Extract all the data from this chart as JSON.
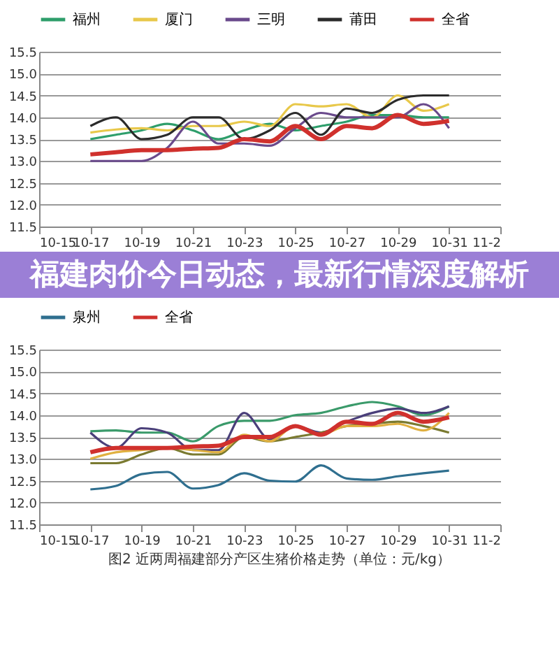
{
  "chart_data": [
    {
      "type": "line",
      "x": [
        "--10-17",
        "--10-18",
        "--10-19",
        "--10-20",
        "--10-21",
        "--10-22",
        "--10-23",
        "--10-24",
        "--10-25",
        "--10-26",
        "--10-27",
        "--10-28",
        "--10-29",
        "--10-30",
        "--10-31"
      ],
      "xlim": [
        "--10-15",
        "--11-02"
      ],
      "xticks": [
        {
          "value": "--10-15",
          "label": "10-15"
        },
        {
          "value": "--10-17",
          "label": "10-17"
        },
        {
          "value": "--10-19",
          "label": "10-19"
        },
        {
          "value": "--10-21",
          "label": "10-21"
        },
        {
          "value": "--10-23",
          "label": "10-23"
        },
        {
          "value": "--10-25",
          "label": "10-25"
        },
        {
          "value": "--10-27",
          "label": "10-27"
        },
        {
          "value": "--10-29",
          "label": "10-29"
        },
        {
          "value": "--10-31",
          "label": "10-31"
        },
        {
          "value": "--11-02",
          "label": "11-2"
        }
      ],
      "ylim": [
        11.5,
        15.5
      ],
      "yticks": [
        11.5,
        {
          "value": 12,
          "label": "12.0"
        },
        12.5,
        {
          "value": 13,
          "label": "13.0"
        },
        13.5,
        {
          "value": 14,
          "label": "14.0"
        },
        14.5,
        {
          "value": 15,
          "label": "15.0"
        },
        15.5
      ],
      "grid": "y",
      "legend": "top",
      "series": [
        {
          "name": "福州",
          "color": "#2e9e6b",
          "values": [
            13.5,
            13.6,
            13.7,
            13.85,
            13.7,
            13.5,
            13.7,
            13.85,
            13.7,
            13.8,
            13.9,
            14.05,
            14.05,
            14.0,
            14.0
          ]
        },
        {
          "name": "厦门",
          "color": "#e8c84a",
          "values": [
            13.65,
            13.72,
            13.75,
            13.7,
            13.8,
            13.8,
            13.9,
            13.8,
            14.3,
            14.25,
            14.3,
            14.0,
            14.5,
            14.15,
            14.3
          ]
        },
        {
          "name": "三明",
          "color": "#6a4a8c",
          "values": [
            13.0,
            13.0,
            13.0,
            13.3,
            13.9,
            13.4,
            13.4,
            13.35,
            13.75,
            14.1,
            14.0,
            14.0,
            14.0,
            14.3,
            13.75
          ]
        },
        {
          "name": "莆田",
          "color": "#2b2b2b",
          "values": [
            13.8,
            14.0,
            13.5,
            13.6,
            14.0,
            14.0,
            13.5,
            13.7,
            14.1,
            13.6,
            14.2,
            14.1,
            14.4,
            14.5,
            14.5
          ]
        },
        {
          "name": "全省",
          "color": "#d0312d",
          "values": [
            13.15,
            13.2,
            13.25,
            13.25,
            13.28,
            13.3,
            13.5,
            13.45,
            13.8,
            13.5,
            13.8,
            13.75,
            14.05,
            13.85,
            13.92
          ]
        }
      ]
    },
    {
      "type": "line",
      "title": "福建肉价今日动态，最新行情深度解析",
      "annotations": [
        "图2  近两周福建部分产区生猪价格走势（单位：元/kg）"
      ],
      "x": [
        "--10-17",
        "--10-18",
        "--10-19",
        "--10-20",
        "--10-21",
        "--10-22",
        "--10-23",
        "--10-24",
        "--10-25",
        "--10-26",
        "--10-27",
        "--10-28",
        "--10-29",
        "--10-30",
        "--10-31"
      ],
      "xlim": [
        "--10-15",
        "--11-02"
      ],
      "xticks": [
        {
          "value": "--10-15",
          "label": "10-15"
        },
        {
          "value": "--10-17",
          "label": "10-17"
        },
        {
          "value": "--10-19",
          "label": "10-19"
        },
        {
          "value": "--10-21",
          "label": "10-21"
        },
        {
          "value": "--10-23",
          "label": "10-23"
        },
        {
          "value": "--10-25",
          "label": "10-25"
        },
        {
          "value": "--10-27",
          "label": "10-27"
        },
        {
          "value": "--10-29",
          "label": "10-29"
        },
        {
          "value": "--10-31",
          "label": "10-31"
        },
        {
          "value": "--11-02",
          "label": "11-2"
        }
      ],
      "ylim": [
        11.5,
        15.5
      ],
      "yticks": [
        11.5,
        {
          "value": 12,
          "label": "12.0"
        },
        12.5,
        {
          "value": 13,
          "label": "13.0"
        },
        13.5,
        {
          "value": 14,
          "label": "14.0"
        },
        14.5,
        {
          "value": 15,
          "label": "15.0"
        },
        15.5
      ],
      "grid": "y",
      "legend": "top",
      "series": [
        {
          "name": "泉州",
          "color": "#2f6f8f",
          "values": [
            12.3,
            12.38,
            12.65,
            12.7,
            12.32,
            12.4,
            12.67,
            12.5,
            12.48,
            12.85,
            12.55,
            12.52,
            12.6,
            12.67,
            12.73
          ]
        },
        {
          "color": "#3a9a6a",
          "values": [
            13.63,
            13.65,
            13.6,
            13.6,
            13.4,
            13.75,
            13.87,
            13.87,
            14.0,
            14.05,
            14.2,
            14.3,
            14.2,
            14.0,
            14.2
          ]
        },
        {
          "color": "#4a3f7a",
          "values": [
            13.6,
            13.25,
            13.7,
            13.6,
            13.2,
            13.2,
            14.05,
            13.45,
            13.75,
            13.6,
            13.85,
            14.05,
            14.15,
            14.05,
            14.2
          ]
        },
        {
          "color": "#7a7a30",
          "values": [
            12.9,
            12.9,
            13.1,
            13.25,
            13.1,
            13.1,
            13.5,
            13.4,
            13.5,
            13.6,
            13.75,
            13.8,
            13.85,
            13.75,
            13.6
          ]
        },
        {
          "color": "#e0b040",
          "values": [
            13.0,
            13.15,
            13.2,
            13.25,
            13.2,
            13.15,
            13.55,
            13.4,
            13.75,
            13.55,
            13.75,
            13.75,
            13.8,
            13.65,
            14.05
          ]
        },
        {
          "name": "全省",
          "color": "#d0312d",
          "values": [
            13.15,
            13.25,
            13.25,
            13.25,
            13.28,
            13.3,
            13.5,
            13.5,
            13.75,
            13.55,
            13.85,
            13.8,
            14.05,
            13.85,
            13.95
          ]
        }
      ]
    }
  ]
}
